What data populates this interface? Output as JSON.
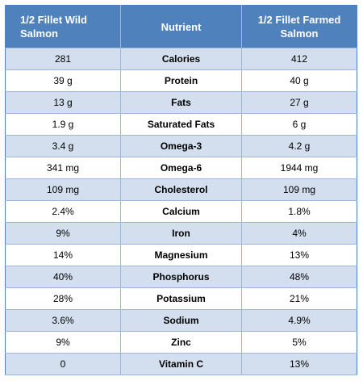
{
  "table": {
    "headers": {
      "wild_line1": "1/2 Fillet Wild",
      "wild_line2": "Salmon",
      "nutrient": "Nutrient",
      "farmed_line1": "1/2 Fillet Farmed",
      "farmed_line2": "Salmon"
    },
    "rows": [
      {
        "wild": "281",
        "nutrient": "Calories",
        "farmed": "412"
      },
      {
        "wild": "39 g",
        "nutrient": "Protein",
        "farmed": "40 g"
      },
      {
        "wild": "13 g",
        "nutrient": "Fats",
        "farmed": "27 g"
      },
      {
        "wild": "1.9 g",
        "nutrient": "Saturated Fats",
        "farmed": "6 g"
      },
      {
        "wild": "3.4 g",
        "nutrient": "Omega-3",
        "farmed": "4.2 g"
      },
      {
        "wild": "341 mg",
        "nutrient": "Omega-6",
        "farmed": "1944 mg"
      },
      {
        "wild": "109 mg",
        "nutrient": "Cholesterol",
        "farmed": "109 mg"
      },
      {
        "wild": "2.4%",
        "nutrient": "Calcium",
        "farmed": "1.8%"
      },
      {
        "wild": "9%",
        "nutrient": "Iron",
        "farmed": "4%"
      },
      {
        "wild": "14%",
        "nutrient": "Magnesium",
        "farmed": "13%"
      },
      {
        "wild": "40%",
        "nutrient": "Phosphorus",
        "farmed": "48%"
      },
      {
        "wild": "28%",
        "nutrient": "Potassium",
        "farmed": "21%"
      },
      {
        "wild": "3.6%",
        "nutrient": "Sodium",
        "farmed": "4.9%"
      },
      {
        "wild": "9%",
        "nutrient": "Zinc",
        "farmed": "5%"
      },
      {
        "wild": "0",
        "nutrient": "Vitamin C",
        "farmed": "13%"
      }
    ]
  },
  "colors": {
    "header_bg": "#4f81bd",
    "header_text": "#ffffff",
    "band_row": "#d3dfee",
    "plain_row": "#ffffff",
    "grid_line": "#9bb7d9"
  }
}
